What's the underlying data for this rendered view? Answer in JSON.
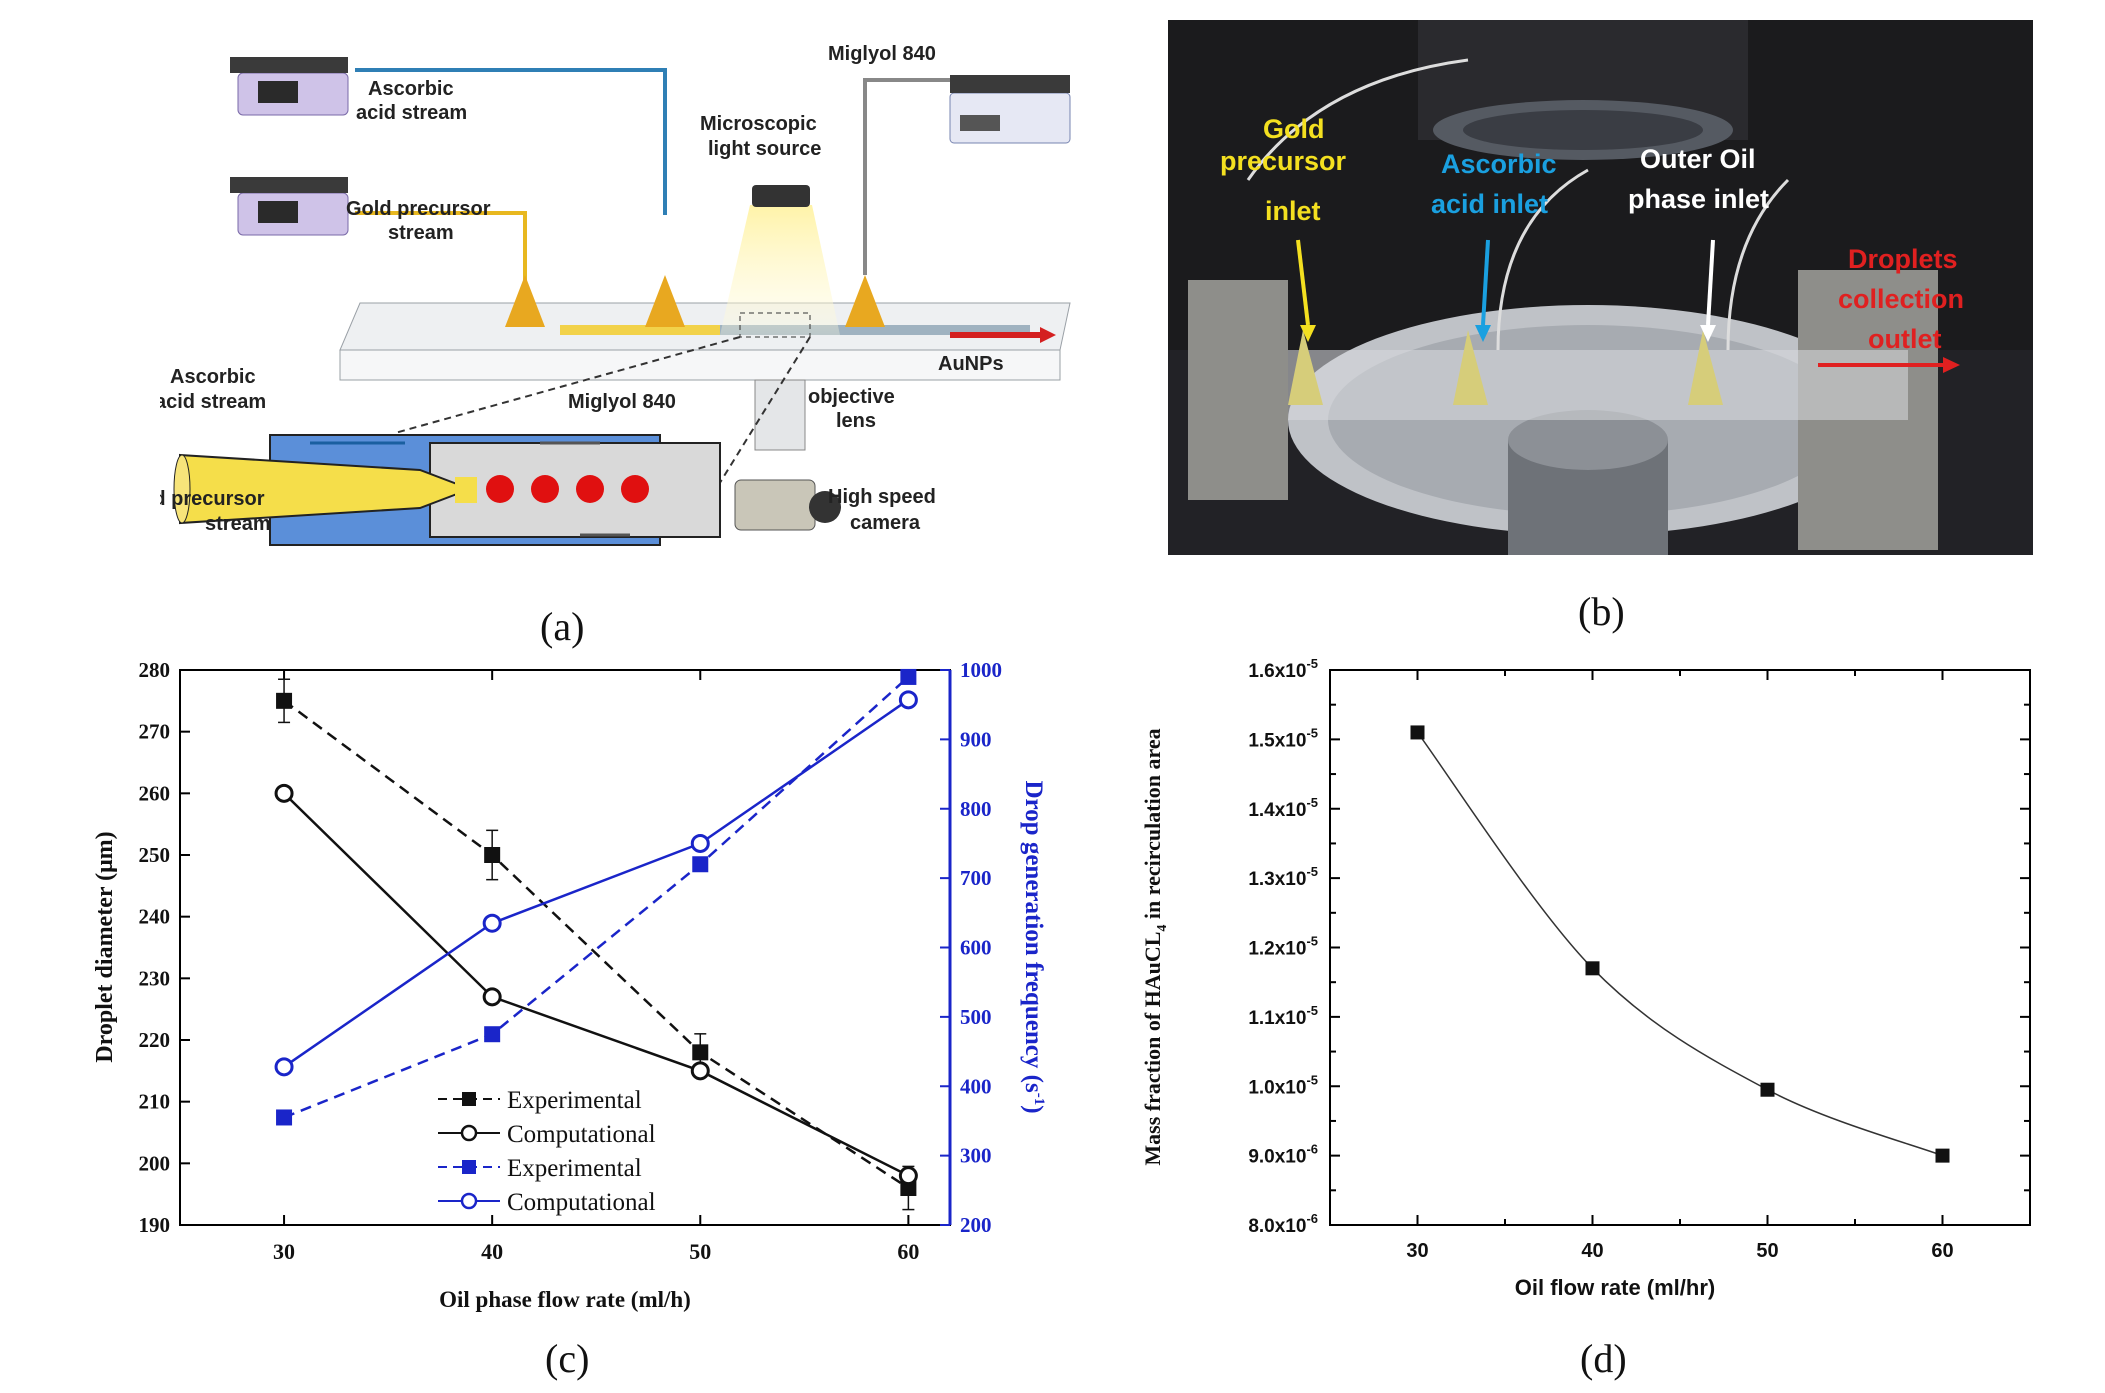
{
  "panel_a": {
    "caption": "(a)",
    "labels": {
      "ascorbic_acid_stream": [
        "Ascorbic",
        "acid stream"
      ],
      "gold_precursor_stream": [
        "Gold precursor",
        "stream"
      ],
      "microscopic_light_source": [
        "Microscopic",
        "light source"
      ],
      "miglyol_top": "Miglyol 840",
      "aunps": "AuNPs",
      "ascorbic_acid_stream_inset": [
        "Ascorbic",
        "acid stream"
      ],
      "miglyol_inset": "Miglyol 840",
      "gold_precursor_stream_inset": [
        "Gold precursor",
        "stream"
      ],
      "objective_lens": [
        "objective",
        "lens"
      ],
      "high_speed_camera": [
        "High speed",
        "camera"
      ]
    },
    "colors": {
      "gold": "#f2d24a",
      "ascorbic": "#2f7fb5",
      "aunps": "#d42020",
      "outer": "#5b8fd9"
    }
  },
  "panel_b": {
    "caption": "(b)",
    "labels": {
      "gold_inlet": [
        "Gold",
        "precursor",
        "inlet"
      ],
      "ascorbic_inlet": [
        "Ascorbic",
        "acid inlet"
      ],
      "oil_inlet": [
        "Outer Oil",
        "phase inlet"
      ],
      "collection_outlet": [
        "Droplets",
        "collection",
        "outlet"
      ]
    }
  },
  "panel_c": {
    "caption": "(c)",
    "legend": [
      "Experimental",
      "Computational",
      "Experimental",
      "Computational"
    ]
  },
  "panel_d": {
    "caption": "(d)"
  },
  "chart_data": [
    {
      "id": "c",
      "type": "line",
      "xlabel": "Oil phase flow rate (ml/h)",
      "ylabel": "Droplet diameter (μm)",
      "y2label": "Drop generation frequency (s",
      "y2label_sup": "-1",
      "y2label_end": ")",
      "x": [
        30,
        40,
        50,
        60
      ],
      "xlim": [
        25,
        62
      ],
      "ylim": [
        190,
        280
      ],
      "y2lim": [
        200,
        1000
      ],
      "xticks": [
        "30",
        "40",
        "50",
        "60"
      ],
      "yticks": [
        "190",
        "200",
        "210",
        "220",
        "230",
        "240",
        "250",
        "260",
        "270",
        "280"
      ],
      "y2ticks": [
        "200",
        "300",
        "400",
        "500",
        "600",
        "700",
        "800",
        "900",
        "1000"
      ],
      "series": [
        {
          "name": "Experimental",
          "axis": "left",
          "color": "#111111",
          "marker": "square",
          "dash": true,
          "values": [
            275,
            250,
            218,
            196
          ],
          "errors": [
            3.5,
            4,
            3,
            3.5
          ]
        },
        {
          "name": "Computational",
          "axis": "left",
          "color": "#111111",
          "marker": "circle",
          "dash": false,
          "values": [
            260,
            227,
            215,
            198
          ]
        },
        {
          "name": "Experimental",
          "axis": "right",
          "color": "#1a25c9",
          "marker": "square",
          "dash": true,
          "values": [
            355,
            475,
            720,
            990
          ]
        },
        {
          "name": "Computational",
          "axis": "right",
          "color": "#1a25c9",
          "marker": "circle",
          "dash": false,
          "values": [
            428,
            635,
            750,
            957
          ]
        }
      ]
    },
    {
      "id": "d",
      "type": "line",
      "xlabel": "Oil flow rate (ml/hr)",
      "ylabel": "Mass fraction of HAuCL4 in recirculation area",
      "ylabel_parts": [
        "Mass fraction of HAuCL",
        "4",
        " in recirculation area"
      ],
      "x": [
        30,
        40,
        50,
        60
      ],
      "xlim": [
        25,
        65
      ],
      "ylim": [
        8e-06,
        1.6e-05
      ],
      "xticks": [
        "30",
        "40",
        "50",
        "60"
      ],
      "ytick_values": [
        8e-06,
        9e-06,
        1e-05,
        1.1e-05,
        1.2e-05,
        1.3e-05,
        1.4e-05,
        1.5e-05,
        1.6e-05
      ],
      "ytick_mantissa": [
        "8.0x10",
        "9.0x10",
        "1.0x10",
        "1.1x10",
        "1.2x10",
        "1.3x10",
        "1.4x10",
        "1.5x10",
        "1.6x10"
      ],
      "ytick_exp": [
        "-6",
        "-6",
        "-5",
        "-5",
        "-5",
        "-5",
        "-5",
        "-5",
        "-5"
      ],
      "series": [
        {
          "name": "Mass fraction",
          "color": "#111111",
          "marker": "square",
          "values": [
            1.51e-05,
            1.17e-05,
            9.95e-06,
            9e-06
          ]
        }
      ]
    }
  ]
}
